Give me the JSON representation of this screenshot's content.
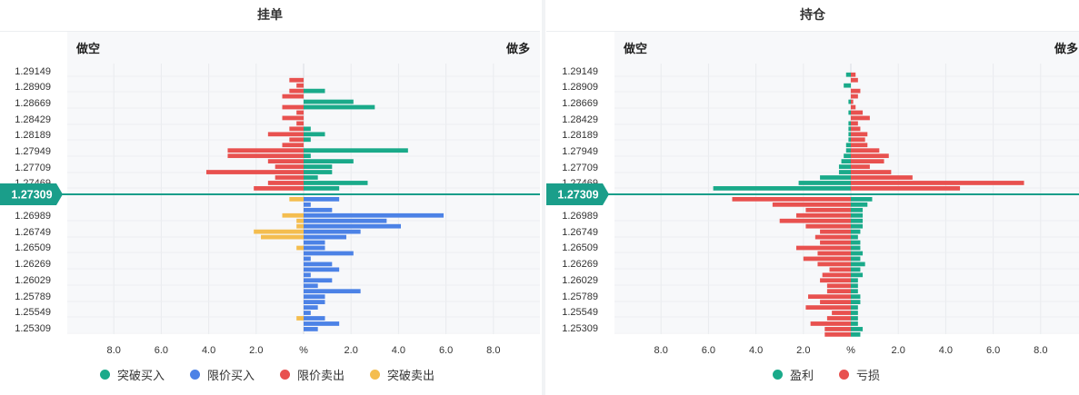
{
  "colors": {
    "breakout_buy": "#1aaa8a",
    "limit_buy": "#4c82e6",
    "limit_sell": "#e8514f",
    "breakout_sell": "#f4bd4f",
    "profit": "#1aaa8a",
    "loss": "#e8514f",
    "price_line": "#1a9e8a"
  },
  "chart_data": [
    {
      "type": "bar",
      "title": "挂单",
      "left_label": "做空",
      "right_label": "做多",
      "current_price": "1.27309",
      "price_labels": [
        "1.29149",
        "1.28909",
        "1.28669",
        "1.28429",
        "1.28189",
        "1.27949",
        "1.27709",
        "1.27469",
        "1.26989",
        "1.26749",
        "1.26509",
        "1.26269",
        "1.26029",
        "1.25789",
        "1.25549",
        "1.25309"
      ],
      "x_tick_labels": [
        "8.0",
        "6.0",
        "4.0",
        "2.0",
        "%",
        "2.0",
        "4.0",
        "6.0",
        "8.0"
      ],
      "xlim": [
        -9,
        9
      ],
      "legend": [
        "突破买入",
        "限价买入",
        "限价卖出",
        "突破卖出"
      ],
      "upper_rows": [
        {
          "sell": 0.6,
          "buy": 0
        },
        {
          "sell": 0.3,
          "buy": 0
        },
        {
          "sell": 0.6,
          "buy": 0.9
        },
        {
          "sell": 0.9,
          "buy": 0
        },
        {
          "sell": 0,
          "buy": 2.1
        },
        {
          "sell": 0.9,
          "buy": 3.0
        },
        {
          "sell": 0.3,
          "buy": 0
        },
        {
          "sell": 0.9,
          "buy": 0
        },
        {
          "sell": 0.3,
          "buy": 0
        },
        {
          "sell": 0.6,
          "buy": 0.3
        },
        {
          "sell": 1.5,
          "buy": 0.9
        },
        {
          "sell": 0.6,
          "buy": 0.3
        },
        {
          "sell": 0.9,
          "buy": 0
        },
        {
          "sell": 3.2,
          "buy": 4.4
        },
        {
          "sell": 3.2,
          "buy": 0.3
        },
        {
          "sell": 1.5,
          "buy": 2.1
        },
        {
          "sell": 1.2,
          "buy": 1.2
        },
        {
          "sell": 4.1,
          "buy": 1.2
        },
        {
          "sell": 1.2,
          "buy": 0.6
        },
        {
          "sell": 1.5,
          "buy": 2.7
        },
        {
          "sell": 2.1,
          "buy": 1.5
        }
      ],
      "lower_rows": [
        {
          "breakout_sell": 0.6,
          "limit_buy": 1.5
        },
        {
          "breakout_sell": 0,
          "limit_buy": 0.3
        },
        {
          "breakout_sell": 0,
          "limit_buy": 1.2
        },
        {
          "breakout_sell": 0.9,
          "limit_buy": 5.9
        },
        {
          "breakout_sell": 0.3,
          "limit_buy": 3.5
        },
        {
          "breakout_sell": 0.3,
          "limit_buy": 4.1
        },
        {
          "breakout_sell": 2.1,
          "limit_buy": 2.4
        },
        {
          "breakout_sell": 1.8,
          "limit_buy": 1.8
        },
        {
          "breakout_sell": 0,
          "limit_buy": 0.9
        },
        {
          "breakout_sell": 0.3,
          "limit_buy": 0.9
        },
        {
          "breakout_sell": 0,
          "limit_buy": 2.1
        },
        {
          "breakout_sell": 0,
          "limit_buy": 0.3
        },
        {
          "breakout_sell": 0,
          "limit_buy": 1.2
        },
        {
          "breakout_sell": 0,
          "limit_buy": 1.5
        },
        {
          "breakout_sell": 0,
          "limit_buy": 0.3
        },
        {
          "breakout_sell": 0,
          "limit_buy": 1.2
        },
        {
          "breakout_sell": 0,
          "limit_buy": 0.6
        },
        {
          "breakout_sell": 0,
          "limit_buy": 2.4
        },
        {
          "breakout_sell": 0,
          "limit_buy": 0.9
        },
        {
          "breakout_sell": 0,
          "limit_buy": 0.9
        },
        {
          "breakout_sell": 0,
          "limit_buy": 0.6
        },
        {
          "breakout_sell": 0,
          "limit_buy": 0.3
        },
        {
          "breakout_sell": 0.3,
          "limit_buy": 0.9
        },
        {
          "breakout_sell": 0,
          "limit_buy": 1.5
        },
        {
          "breakout_sell": 0,
          "limit_buy": 0.6
        }
      ]
    },
    {
      "type": "bar",
      "title": "持仓",
      "left_label": "做空",
      "right_label": "做多",
      "current_price": "1.27309",
      "price_labels": [
        "1.29149",
        "1.28909",
        "1.28669",
        "1.28429",
        "1.28189",
        "1.27949",
        "1.27709",
        "1.27469",
        "1.26989",
        "1.26749",
        "1.26509",
        "1.26269",
        "1.26029",
        "1.25789",
        "1.25549",
        "1.25309"
      ],
      "x_tick_labels": [
        "8.0",
        "6.0",
        "4.0",
        "2.0",
        "%",
        "2.0",
        "4.0",
        "6.0",
        "8.0"
      ],
      "xlim": [
        -9,
        9
      ],
      "legend": [
        "盈利",
        "亏损"
      ],
      "upper_rows": [
        {
          "short": 0.2,
          "long": 0.2,
          "short_type": "profit",
          "long_type": "loss"
        },
        {
          "short": 0,
          "long": 0.3,
          "short_type": "profit",
          "long_type": "loss"
        },
        {
          "short": 0.3,
          "long": 0,
          "short_type": "profit",
          "long_type": "loss"
        },
        {
          "short": 0,
          "long": 0.4,
          "short_type": "profit",
          "long_type": "loss"
        },
        {
          "short": 0,
          "long": 0.3,
          "short_type": "profit",
          "long_type": "loss"
        },
        {
          "short": 0.1,
          "long": 0.1,
          "short_type": "profit",
          "long_type": "loss"
        },
        {
          "short": 0,
          "long": 0.2,
          "short_type": "profit",
          "long_type": "loss"
        },
        {
          "short": 0.1,
          "long": 0.5,
          "short_type": "profit",
          "long_type": "loss"
        },
        {
          "short": 0,
          "long": 0.8,
          "short_type": "profit",
          "long_type": "loss"
        },
        {
          "short": 0.1,
          "long": 0.3,
          "short_type": "profit",
          "long_type": "loss"
        },
        {
          "short": 0.1,
          "long": 0.4,
          "short_type": "profit",
          "long_type": "loss"
        },
        {
          "short": 0.1,
          "long": 0.7,
          "short_type": "profit",
          "long_type": "loss"
        },
        {
          "short": 0.1,
          "long": 0.6,
          "short_type": "profit",
          "long_type": "loss"
        },
        {
          "short": 0.2,
          "long": 0.7,
          "short_type": "profit",
          "long_type": "loss"
        },
        {
          "short": 0.2,
          "long": 1.2,
          "short_type": "profit",
          "long_type": "loss"
        },
        {
          "short": 0.3,
          "long": 1.6,
          "short_type": "profit",
          "long_type": "loss"
        },
        {
          "short": 0.4,
          "long": 1.4,
          "short_type": "profit",
          "long_type": "loss"
        },
        {
          "short": 0.5,
          "long": 0.8,
          "short_type": "profit",
          "long_type": "loss"
        },
        {
          "short": 0.5,
          "long": 1.7,
          "short_type": "profit",
          "long_type": "loss"
        },
        {
          "short": 1.3,
          "long": 2.6,
          "short_type": "profit",
          "long_type": "loss"
        },
        {
          "short": 2.2,
          "long": 7.3,
          "short_type": "profit",
          "long_type": "loss"
        },
        {
          "short": 5.8,
          "long": 4.6,
          "short_type": "profit",
          "long_type": "loss"
        }
      ],
      "lower_rows": [
        {
          "short": 5.0,
          "long": 0.9,
          "short_type": "loss",
          "long_type": "profit"
        },
        {
          "short": 3.3,
          "long": 0.7,
          "short_type": "loss",
          "long_type": "profit"
        },
        {
          "short": 1.9,
          "long": 0.5,
          "short_type": "loss",
          "long_type": "profit"
        },
        {
          "short": 2.3,
          "long": 0.5,
          "short_type": "loss",
          "long_type": "profit"
        },
        {
          "short": 3.0,
          "long": 0.5,
          "short_type": "loss",
          "long_type": "profit"
        },
        {
          "short": 1.9,
          "long": 0.5,
          "short_type": "loss",
          "long_type": "profit"
        },
        {
          "short": 1.3,
          "long": 0.4,
          "short_type": "loss",
          "long_type": "profit"
        },
        {
          "short": 1.5,
          "long": 0.3,
          "short_type": "loss",
          "long_type": "profit"
        },
        {
          "short": 1.3,
          "long": 0.4,
          "short_type": "loss",
          "long_type": "profit"
        },
        {
          "short": 2.3,
          "long": 0.4,
          "short_type": "loss",
          "long_type": "profit"
        },
        {
          "short": 1.4,
          "long": 0.5,
          "short_type": "loss",
          "long_type": "profit"
        },
        {
          "short": 2.0,
          "long": 0.4,
          "short_type": "loss",
          "long_type": "profit"
        },
        {
          "short": 1.4,
          "long": 0.6,
          "short_type": "loss",
          "long_type": "profit"
        },
        {
          "short": 0.9,
          "long": 0.4,
          "short_type": "loss",
          "long_type": "profit"
        },
        {
          "short": 1.2,
          "long": 0.5,
          "short_type": "loss",
          "long_type": "profit"
        },
        {
          "short": 1.3,
          "long": 0.3,
          "short_type": "loss",
          "long_type": "profit"
        },
        {
          "short": 1.0,
          "long": 0.3,
          "short_type": "loss",
          "long_type": "profit"
        },
        {
          "short": 1.0,
          "long": 0.3,
          "short_type": "loss",
          "long_type": "profit"
        },
        {
          "short": 1.8,
          "long": 0.4,
          "short_type": "loss",
          "long_type": "profit"
        },
        {
          "short": 1.3,
          "long": 0.4,
          "short_type": "loss",
          "long_type": "profit"
        },
        {
          "short": 1.9,
          "long": 0.3,
          "short_type": "loss",
          "long_type": "profit"
        },
        {
          "short": 0.8,
          "long": 0.3,
          "short_type": "loss",
          "long_type": "profit"
        },
        {
          "short": 1.0,
          "long": 0.3,
          "short_type": "loss",
          "long_type": "profit"
        },
        {
          "short": 1.7,
          "long": 0.3,
          "short_type": "loss",
          "long_type": "profit"
        },
        {
          "short": 1.1,
          "long": 0.5,
          "short_type": "loss",
          "long_type": "profit"
        },
        {
          "short": 1.1,
          "long": 0.4,
          "short_type": "loss",
          "long_type": "profit"
        }
      ]
    }
  ]
}
